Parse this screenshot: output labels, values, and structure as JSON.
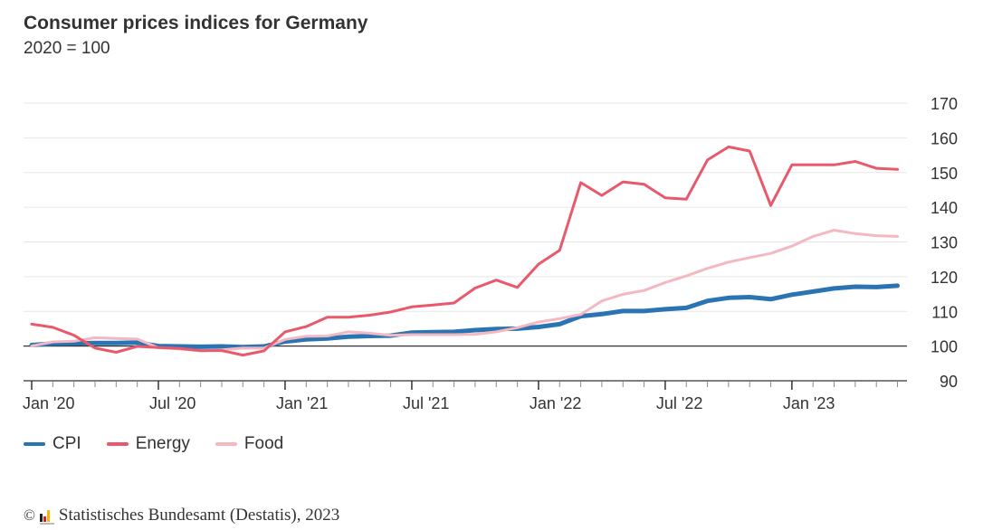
{
  "header": {
    "title": "Consumer prices indices for Germany",
    "subtitle": "2020 = 100"
  },
  "legend": [
    {
      "label": "CPI",
      "color": "#2b74b4"
    },
    {
      "label": "Energy",
      "color": "#e8596c"
    },
    {
      "label": "Food",
      "color": "#f4b8c1"
    }
  ],
  "footer": {
    "copyright_symbol": "©",
    "text": "Statistisches Bundesamt (Destatis), 2023"
  },
  "chart_data": {
    "type": "line",
    "title": "Consumer prices indices for Germany",
    "subtitle": "2020 = 100",
    "xlabel": "",
    "ylabel": "",
    "ylim": [
      90,
      170
    ],
    "yticks": [
      90,
      100,
      110,
      120,
      130,
      140,
      150,
      160,
      170
    ],
    "y_axis_position": "right",
    "grid": true,
    "baseline": 100,
    "legend_position": "bottom-left",
    "x_tick_labels": [
      "Jan '20",
      "Jul '20",
      "Jan '21",
      "Jul '21",
      "Jan '22",
      "Jul '22",
      "Jan '23"
    ],
    "x_tick_label_indices": [
      0,
      6,
      12,
      18,
      24,
      30,
      36
    ],
    "x": [
      "2020-01",
      "2020-02",
      "2020-03",
      "2020-04",
      "2020-05",
      "2020-06",
      "2020-07",
      "2020-08",
      "2020-09",
      "2020-10",
      "2020-11",
      "2020-12",
      "2021-01",
      "2021-02",
      "2021-03",
      "2021-04",
      "2021-05",
      "2021-06",
      "2021-07",
      "2021-08",
      "2021-09",
      "2021-10",
      "2021-11",
      "2021-12",
      "2022-01",
      "2022-02",
      "2022-03",
      "2022-04",
      "2022-05",
      "2022-06",
      "2022-07",
      "2022-08",
      "2022-09",
      "2022-10",
      "2022-11",
      "2022-12",
      "2023-01",
      "2023-02",
      "2023-03",
      "2023-04",
      "2023-05",
      "2023-06"
    ],
    "series": [
      {
        "name": "CPI",
        "color": "#2b74b4",
        "values": [
          100.3,
          100.7,
          100.8,
          100.9,
          100.9,
          101.0,
          100.0,
          99.9,
          99.8,
          99.9,
          99.7,
          99.9,
          101.3,
          101.9,
          102.2,
          102.7,
          102.9,
          103.0,
          103.9,
          104.0,
          104.1,
          104.6,
          104.9,
          105.0,
          105.5,
          106.3,
          108.6,
          109.2,
          110.1,
          110.1,
          110.6,
          111.0,
          113.0,
          113.9,
          114.1,
          113.5,
          114.8,
          115.7,
          116.6,
          117.1,
          117.0,
          117.4
        ]
      },
      {
        "name": "Energy",
        "color": "#e8596c",
        "values": [
          106.3,
          105.4,
          103.1,
          99.4,
          98.2,
          99.9,
          99.6,
          99.3,
          98.7,
          98.7,
          97.4,
          98.6,
          104.1,
          105.6,
          108.3,
          108.3,
          108.9,
          109.8,
          111.3,
          111.8,
          112.4,
          116.7,
          119.0,
          116.9,
          123.6,
          127.6,
          147.1,
          143.4,
          147.3,
          146.6,
          142.7,
          142.3,
          153.6,
          157.4,
          156.2,
          140.5,
          152.2,
          152.2,
          152.2,
          153.2,
          151.2,
          150.9
        ]
      },
      {
        "name": "Food",
        "color": "#f4b8c1",
        "values": [
          100.0,
          101.2,
          101.4,
          102.4,
          102.2,
          102.0,
          99.5,
          99.2,
          98.6,
          98.9,
          99.4,
          99.4,
          101.9,
          102.8,
          102.9,
          104.1,
          103.7,
          103.1,
          103.3,
          103.3,
          103.3,
          103.4,
          104.1,
          105.3,
          106.9,
          107.9,
          109.1,
          113.0,
          114.9,
          116.0,
          118.3,
          120.2,
          122.4,
          124.2,
          125.5,
          126.7,
          128.8,
          131.6,
          133.4,
          132.4,
          131.8,
          131.6
        ]
      }
    ]
  }
}
